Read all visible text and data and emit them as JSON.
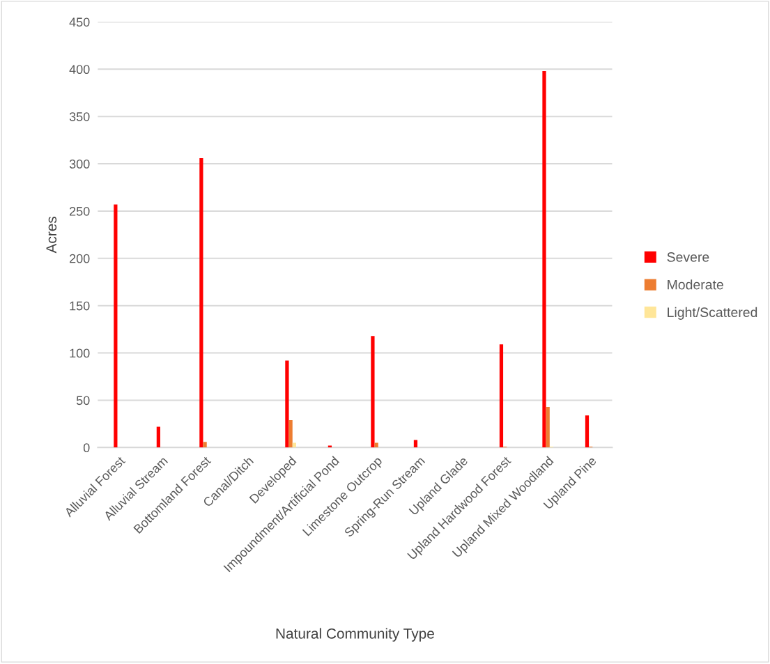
{
  "chart_data": {
    "type": "bar",
    "xlabel": "Natural Community Type",
    "ylabel": "Acres",
    "categories": [
      "Alluvial Forest",
      "Alluvial Stream",
      "Bottomland Forest",
      "Canal/Ditch",
      "Developed",
      "Impoundment/Artificial Pond",
      "Limestone Outcrop",
      "Spring-Run Stream",
      "Upland Glade",
      "Upland Hardwood Forest",
      "Upland Mixed Woodland",
      "Upland Pine"
    ],
    "series": [
      {
        "name": "Severe",
        "color": "#ff0000",
        "values": [
          257,
          22,
          306,
          0,
          92,
          2,
          118,
          8,
          0,
          109,
          398,
          34
        ]
      },
      {
        "name": "Moderate",
        "color": "#ed7d31",
        "values": [
          0,
          0,
          6,
          0,
          29,
          0,
          5,
          0,
          0,
          1,
          43,
          1
        ]
      },
      {
        "name": "Light/Scattered",
        "color": "#ffe699",
        "values": [
          0,
          0,
          0,
          0,
          5,
          0,
          0,
          0,
          0,
          0,
          1,
          0
        ]
      }
    ],
    "ylim": [
      0,
      450
    ],
    "yticks": [
      0,
      50,
      100,
      150,
      200,
      250,
      300,
      350,
      400,
      450
    ],
    "grid": "y",
    "legend": "right"
  }
}
